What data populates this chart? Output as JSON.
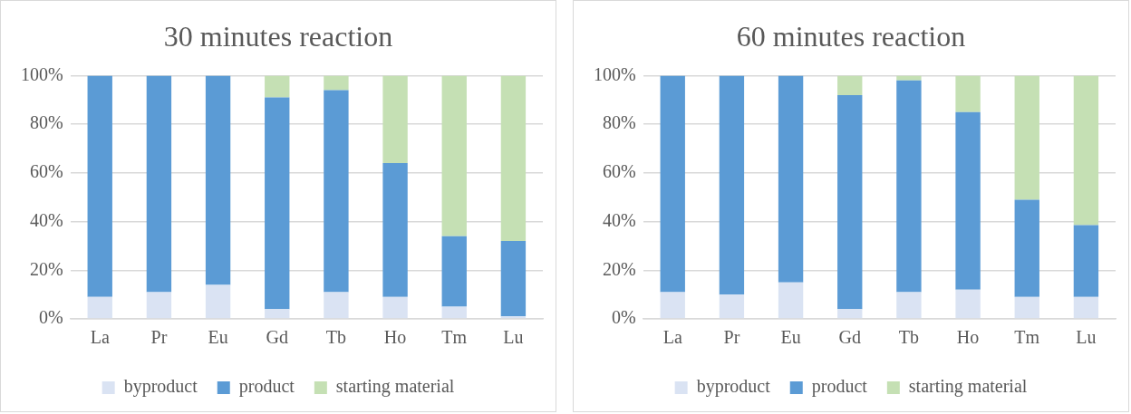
{
  "chart_data": [
    {
      "type": "bar",
      "title": "30 minutes reaction",
      "categories": [
        "La",
        "Pr",
        "Eu",
        "Gd",
        "Tb",
        "Ho",
        "Tm",
        "Lu"
      ],
      "stacked": true,
      "grid": "y",
      "legend": "bottom",
      "ylim": [
        0,
        100
      ],
      "yticks": [
        {
          "value": 0,
          "label": "0%"
        },
        {
          "value": 20,
          "label": "20%"
        },
        {
          "value": 40,
          "label": "40%"
        },
        {
          "value": 60,
          "label": "60%"
        },
        {
          "value": 80,
          "label": "80%"
        },
        {
          "value": 100,
          "label": "100%"
        }
      ],
      "series": [
        {
          "name": "byproduct",
          "color": "#dae3f3",
          "values": [
            9,
            11,
            14,
            4,
            11,
            9,
            5,
            1
          ]
        },
        {
          "name": "product",
          "color": "#5b9bd5",
          "values": [
            91,
            89,
            86,
            87,
            83,
            55,
            29,
            31
          ]
        },
        {
          "name": "starting material",
          "color": "#c5e0b4",
          "values": [
            0,
            0,
            0,
            9,
            6,
            36,
            66,
            68
          ]
        }
      ]
    },
    {
      "type": "bar",
      "title": "60 minutes reaction",
      "categories": [
        "La",
        "Pr",
        "Eu",
        "Gd",
        "Tb",
        "Ho",
        "Tm",
        "Lu"
      ],
      "stacked": true,
      "grid": "y",
      "legend": "bottom",
      "ylim": [
        0,
        100
      ],
      "yticks": [
        {
          "value": 0,
          "label": "0%"
        },
        {
          "value": 20,
          "label": "20%"
        },
        {
          "value": 40,
          "label": "40%"
        },
        {
          "value": 60,
          "label": "60%"
        },
        {
          "value": 80,
          "label": "80%"
        },
        {
          "value": 100,
          "label": "100%"
        }
      ],
      "series": [
        {
          "name": "byproduct",
          "color": "#dae3f3",
          "values": [
            11,
            10,
            15,
            4,
            11,
            12,
            9,
            9
          ]
        },
        {
          "name": "product",
          "color": "#5b9bd5",
          "values": [
            89,
            90,
            85,
            88,
            87,
            73,
            40,
            29.5
          ]
        },
        {
          "name": "starting material",
          "color": "#c5e0b4",
          "values": [
            0,
            0,
            0,
            8,
            2,
            15,
            51,
            61.5
          ]
        }
      ]
    }
  ]
}
